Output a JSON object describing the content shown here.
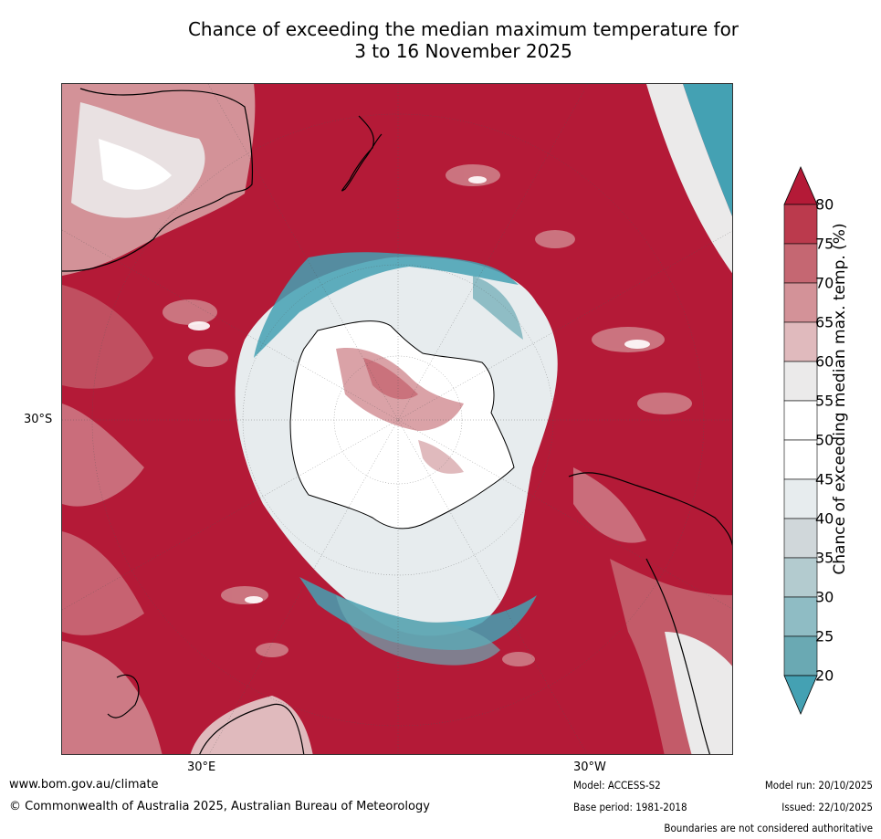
{
  "title": {
    "line1": "Chance of exceeding the median maximum temperature for",
    "line2": "3 to 16 November 2025"
  },
  "map": {
    "projection": "south-polar-stereographic",
    "axis_labels": {
      "left": "30°S",
      "bottom_left": "30°E",
      "bottom_right": "30°W"
    },
    "dominant_category": "80+",
    "colors": {
      "c80plus": "#b41a37",
      "ocean_background": "#b41a37"
    }
  },
  "colorbar": {
    "label": "Chance of exceeding median max. temp. (%)",
    "ticks": [
      "80",
      "75",
      "70",
      "65",
      "60",
      "55",
      "50",
      "45",
      "40",
      "35",
      "30",
      "25",
      "20"
    ],
    "bins": [
      {
        "range": "80+",
        "color": "#b41a37"
      },
      {
        "range": "75-80",
        "color": "#bb3a4d"
      },
      {
        "range": "70-75",
        "color": "#c56772"
      },
      {
        "range": "65-70",
        "color": "#d39298"
      },
      {
        "range": "60-65",
        "color": "#e0babd"
      },
      {
        "range": "55-60",
        "color": "#ebeaea"
      },
      {
        "range": "50-55",
        "color": "#ffffff"
      },
      {
        "range": "45-50",
        "color": "#ffffff"
      },
      {
        "range": "40-45",
        "color": "#e7ecee"
      },
      {
        "range": "35-40",
        "color": "#d0d7da"
      },
      {
        "range": "30-35",
        "color": "#b3cbcf"
      },
      {
        "range": "25-30",
        "color": "#8fbcc4"
      },
      {
        "range": "20-25",
        "color": "#6aa9b3"
      },
      {
        "range": "<20",
        "color": "#44a1b3"
      }
    ]
  },
  "footer": {
    "website": "www.bom.gov.au/climate",
    "copyright": "© Commonwealth of Australia 2025, Australian Bureau of Meteorology",
    "model": "Model: ACCESS-S2",
    "base_period": "Base period: 1981-2018",
    "model_run": "Model run: 20/10/2025",
    "issued": "Issued: 22/10/2025",
    "disclaimer": "Boundaries are not considered authoritative"
  }
}
